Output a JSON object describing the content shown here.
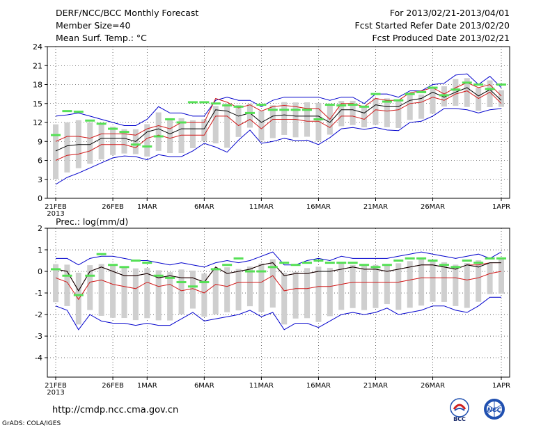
{
  "header": {
    "title": "DERF/NCC/BCC Monthly Forecast",
    "member_size": "Member Size=40",
    "variable_temp": "Mean Surf. Temp.: °C",
    "period": "For 2013/02/21-2013/04/01",
    "fcst_started": "Fcst Started Refer Date 2013/02/20",
    "fcst_produced": "Fcst Produced Date 2013/02/21"
  },
  "footer": {
    "url": "http://cmdp.ncc.cma.gov.cn",
    "credit": "GrADS: COLA/IGES",
    "logo_left": "BCC",
    "logo_right": "NCC"
  },
  "colors": {
    "box": "#cfcfcf",
    "median": "#55e055",
    "mean": "#000000",
    "band": "#d01818",
    "envelope": "#0000cc"
  },
  "chart_data": [
    {
      "type": "line",
      "title": "Mean Surf. Temp.: °C",
      "x_tick_labels": [
        "21FEB",
        "26FEB",
        "1MAR",
        "6MAR",
        "11MAR",
        "16MAR",
        "21MAR",
        "26MAR",
        "1APR"
      ],
      "x_year_label": "2013",
      "xlim": [
        1,
        40
      ],
      "ylim": [
        0,
        24
      ],
      "yticks": [
        0,
        3,
        6,
        9,
        12,
        15,
        18,
        21,
        24
      ],
      "grid": "dotted",
      "series": [
        {
          "name": "upper envelope",
          "style": "blue",
          "values": [
            13,
            13.2,
            13.5,
            13,
            12.5,
            12,
            11.5,
            11.5,
            12.5,
            14.5,
            13.5,
            13.5,
            13,
            13,
            15.5,
            16,
            15.5,
            15.5,
            14.5,
            15.5,
            16,
            16,
            16,
            16,
            15.5,
            16,
            16,
            15,
            16.5,
            16.5,
            16,
            17,
            17,
            18,
            18.2,
            19.5,
            19.7,
            18,
            19.3,
            17.5
          ]
        },
        {
          "name": "upper spread",
          "style": "red",
          "values": [
            9,
            9.8,
            9.8,
            9.5,
            10.2,
            10.2,
            10.2,
            10,
            11,
            11.5,
            11,
            12,
            12,
            12,
            15.8,
            15.2,
            14.3,
            14.8,
            13.8,
            14.5,
            14.7,
            14.5,
            14.2,
            14.2,
            12.5,
            15,
            15,
            14.5,
            15.8,
            15.5,
            15.5,
            16.7,
            17,
            17.5,
            16.5,
            17.5,
            18.3,
            17.5,
            18,
            16.2
          ]
        },
        {
          "name": "ensemble mean",
          "style": "black",
          "values": [
            7.5,
            8.3,
            8.5,
            8.5,
            9.5,
            9.5,
            9.5,
            9,
            10.5,
            11,
            10.2,
            11,
            11,
            11,
            14,
            13.8,
            13,
            13.5,
            12,
            13,
            13.2,
            13,
            13,
            13,
            12,
            14,
            14,
            13.5,
            14.8,
            14.5,
            14.5,
            15.5,
            15.8,
            16.8,
            16,
            16.8,
            17.5,
            16.2,
            17.2,
            15.5
          ]
        },
        {
          "name": "lower spread",
          "style": "red",
          "values": [
            6,
            6.8,
            7,
            7.5,
            8.5,
            8.5,
            8.5,
            8,
            9.5,
            10,
            9.5,
            10,
            10,
            10,
            13,
            13,
            11.5,
            12.5,
            11,
            12.5,
            12.5,
            12.5,
            12.2,
            12.2,
            11.2,
            13,
            13,
            12.5,
            14,
            13.8,
            14,
            15,
            15.2,
            16,
            15.5,
            16.5,
            17,
            15.8,
            16.8,
            15
          ]
        },
        {
          "name": "lower envelope",
          "style": "blue",
          "values": [
            2.2,
            3.3,
            4,
            4.8,
            5.6,
            6.4,
            6.7,
            6.6,
            6.1,
            6.9,
            6.6,
            6.6,
            7.5,
            8.7,
            8.1,
            7.3,
            9.2,
            10.8,
            8.7,
            9,
            9.5,
            9.1,
            9.2,
            8.5,
            9.6,
            11,
            11.2,
            10.9,
            11.2,
            10.8,
            10.7,
            12,
            12.2,
            13,
            14.2,
            14.2,
            14,
            13.5,
            14,
            14.2
          ]
        },
        {
          "name": "ensemble median",
          "style": "green-dash",
          "values": [
            10,
            13.8,
            13.7,
            12.3,
            11.8,
            11,
            10.5,
            8.5,
            8.2,
            9.8,
            12.5,
            12,
            15.2,
            15.2,
            15,
            14.7,
            14.5,
            13.5,
            14.8,
            14,
            14,
            14,
            14,
            12.5,
            14.8,
            14.7,
            14.8,
            14.5,
            16.5,
            15.3,
            15.5,
            16.5,
            16.8,
            17.5,
            16.3,
            17.2,
            18.3,
            18,
            17.3,
            18
          ]
        }
      ]
    },
    {
      "type": "line",
      "title": "Prec.: log(mm/d)",
      "x_tick_labels": [
        "21FEB",
        "26FEB",
        "1MAR",
        "6MAR",
        "11MAR",
        "16MAR",
        "21MAR",
        "26MAR",
        "1APR"
      ],
      "x_year_label": "2013",
      "xlim": [
        1,
        40
      ],
      "ylim": [
        -4.9,
        2
      ],
      "yticks": [
        -4,
        -3,
        -2,
        -1,
        0,
        1,
        2
      ],
      "grid": "dotted",
      "series": [
        {
          "name": "upper envelope",
          "style": "blue",
          "values": [
            0.6,
            0.6,
            0.3,
            0.6,
            0.7,
            0.7,
            0.6,
            0.5,
            0.5,
            0.4,
            0.3,
            0.4,
            0.3,
            0.2,
            0.4,
            0.5,
            0.4,
            0.5,
            0.7,
            0.9,
            0.3,
            0.3,
            0.5,
            0.6,
            0.5,
            0.7,
            0.6,
            0.6,
            0.6,
            0.6,
            0.7,
            0.8,
            0.9,
            0.8,
            0.7,
            0.6,
            0.7,
            0.8,
            0.6,
            0.9
          ]
        },
        {
          "name": "upper spread",
          "style": "red",
          "values": [
            0.1,
            0,
            -0.9,
            0,
            0.2,
            0,
            -0.2,
            -0.2,
            -0.1,
            -0.3,
            -0.2,
            -0.3,
            -0.3,
            -0.5,
            0.2,
            -0.1,
            0,
            0.1,
            0.3,
            0.4,
            -0.2,
            -0.1,
            -0.1,
            0,
            0,
            0.1,
            0.2,
            0.1,
            0.1,
            0,
            0.1,
            0.2,
            0.3,
            0.3,
            0.2,
            0.1,
            0.3,
            0.3,
            0.4,
            0.4
          ]
        },
        {
          "name": "ensemble mean",
          "style": "black",
          "values": [
            0.1,
            0,
            -0.9,
            0,
            0.2,
            0,
            -0.2,
            -0.2,
            -0.1,
            -0.3,
            -0.2,
            -0.3,
            -0.3,
            -0.5,
            0.2,
            -0.1,
            0,
            0.1,
            0.3,
            0.4,
            -0.2,
            -0.1,
            -0.1,
            0,
            0,
            0.1,
            0.2,
            0.1,
            0.1,
            0,
            0.1,
            0.2,
            0.3,
            0.3,
            0.2,
            0.1,
            0.3,
            0.2,
            0.4,
            0.4
          ]
        },
        {
          "name": "lower spread",
          "style": "red",
          "values": [
            -0.3,
            -0.5,
            -1.3,
            -0.5,
            -0.4,
            -0.6,
            -0.7,
            -0.8,
            -0.5,
            -0.7,
            -0.6,
            -0.9,
            -0.8,
            -1,
            -0.6,
            -0.7,
            -0.5,
            -0.5,
            -0.5,
            -0.2,
            -0.9,
            -0.8,
            -0.8,
            -0.7,
            -0.7,
            -0.6,
            -0.5,
            -0.5,
            -0.5,
            -0.5,
            -0.5,
            -0.4,
            -0.3,
            -0.3,
            -0.3,
            -0.3,
            -0.4,
            -0.3,
            -0.1,
            0
          ]
        },
        {
          "name": "lower envelope",
          "style": "blue",
          "values": [
            -1.6,
            -1.8,
            -2.7,
            -2,
            -2.3,
            -2.4,
            -2.4,
            -2.5,
            -2.4,
            -2.5,
            -2.5,
            -2.2,
            -1.9,
            -2.3,
            -2.2,
            -2.1,
            -2,
            -1.8,
            -2.1,
            -1.9,
            -2.7,
            -2.4,
            -2.4,
            -2.6,
            -2.3,
            -2,
            -1.9,
            -2,
            -1.9,
            -1.7,
            -2,
            -1.9,
            -1.8,
            -1.6,
            -1.6,
            -1.8,
            -1.9,
            -1.6,
            -1.2,
            -1.2
          ]
        },
        {
          "name": "ensemble median",
          "style": "green-dash",
          "values": [
            0.1,
            -0.2,
            -1.1,
            -0.2,
            0.8,
            0.3,
            0.2,
            0.5,
            0.4,
            -0.2,
            -0.3,
            -0.5,
            -0.7,
            -0.5,
            0.1,
            0.3,
            0.6,
            0,
            0,
            0.2,
            0.4,
            0.3,
            0.4,
            0.5,
            0.4,
            0.4,
            0.4,
            0.3,
            0.2,
            0.3,
            0.5,
            0.6,
            0.6,
            0.5,
            0.3,
            0.2,
            0.5,
            0.4,
            0.6,
            0.6
          ]
        }
      ]
    }
  ]
}
